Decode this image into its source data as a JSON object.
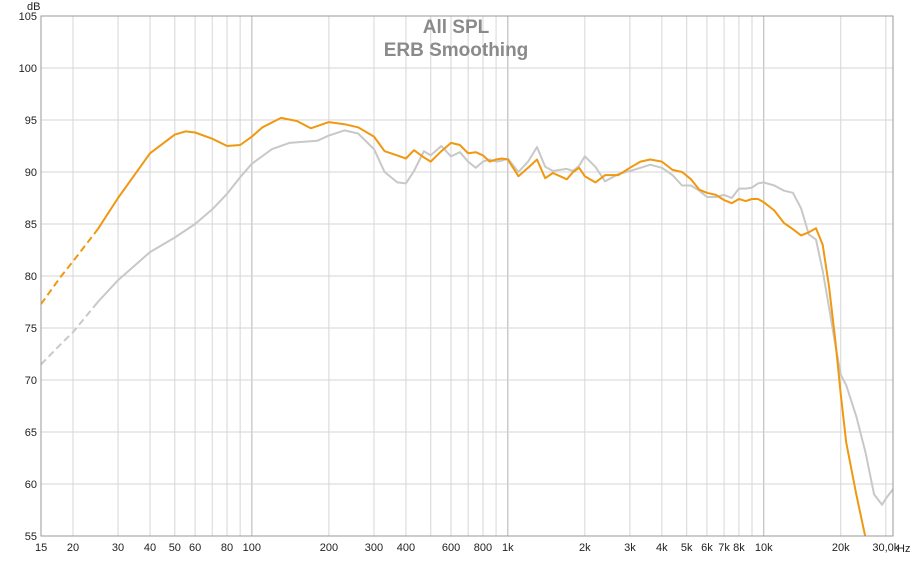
{
  "chart_data": {
    "type": "line",
    "title": "All SPL",
    "subtitle": "ERB Smoothing",
    "y_unit": "dB",
    "x_unit": "Hz",
    "x_scale": "log",
    "xlim": [
      15,
      32000
    ],
    "ylim": [
      55,
      105
    ],
    "grid": true,
    "legend": "none",
    "x_ticks": [
      {
        "value": 15,
        "label": "15"
      },
      {
        "value": 20,
        "label": "20"
      },
      {
        "value": 30,
        "label": "30"
      },
      {
        "value": 40,
        "label": "40"
      },
      {
        "value": 50,
        "label": "50"
      },
      {
        "value": 60,
        "label": "60"
      },
      {
        "value": 80,
        "label": "80"
      },
      {
        "value": 100,
        "label": "100"
      },
      {
        "value": 200,
        "label": "200"
      },
      {
        "value": 300,
        "label": "300"
      },
      {
        "value": 400,
        "label": "400"
      },
      {
        "value": 600,
        "label": "600"
      },
      {
        "value": 800,
        "label": "800"
      },
      {
        "value": 1000,
        "label": "1k"
      },
      {
        "value": 2000,
        "label": "2k"
      },
      {
        "value": 3000,
        "label": "3k"
      },
      {
        "value": 4000,
        "label": "4k"
      },
      {
        "value": 5000,
        "label": "5k"
      },
      {
        "value": 6000,
        "label": "6k"
      },
      {
        "value": 7000,
        "label": "7k"
      },
      {
        "value": 8000,
        "label": "8k"
      },
      {
        "value": 10000,
        "label": "10k"
      },
      {
        "value": 20000,
        "label": "20k"
      },
      {
        "value": 30000,
        "label": "30,0k"
      }
    ],
    "y_ticks": [
      {
        "value": 55,
        "label": "55"
      },
      {
        "value": 60,
        "label": "60"
      },
      {
        "value": 65,
        "label": "65"
      },
      {
        "value": 70,
        "label": "70"
      },
      {
        "value": 75,
        "label": "75"
      },
      {
        "value": 80,
        "label": "80"
      },
      {
        "value": 85,
        "label": "85"
      },
      {
        "value": 90,
        "label": "90"
      },
      {
        "value": 95,
        "label": "95"
      },
      {
        "value": 100,
        "label": "100"
      },
      {
        "value": 105,
        "label": "105"
      }
    ],
    "series": [
      {
        "color": "#f0980f",
        "dashed_below_hz": 25,
        "x": [
          15,
          18,
          20,
          25,
          30,
          40,
          50,
          55,
          60,
          70,
          80,
          90,
          100,
          110,
          130,
          150,
          170,
          200,
          230,
          260,
          300,
          330,
          370,
          400,
          430,
          470,
          500,
          550,
          600,
          650,
          700,
          750,
          800,
          850,
          900,
          950,
          1000,
          1100,
          1200,
          1300,
          1400,
          1500,
          1600,
          1700,
          1800,
          1900,
          2000,
          2200,
          2400,
          2700,
          3000,
          3300,
          3600,
          4000,
          4400,
          4800,
          5200,
          5600,
          6000,
          6500,
          7000,
          7500,
          8000,
          8500,
          9000,
          9500,
          10000,
          11000,
          12000,
          13000,
          14000,
          15000,
          16000,
          17000,
          18000,
          19000,
          20000,
          21000,
          23000,
          25000
        ],
        "y": [
          77.3,
          80,
          81.4,
          84.5,
          87.5,
          91.8,
          93.6,
          93.9,
          93.8,
          93.2,
          92.5,
          92.6,
          93.4,
          94.3,
          95.2,
          94.9,
          94.2,
          94.8,
          94.6,
          94.3,
          93.4,
          92.0,
          91.6,
          91.3,
          92.1,
          91.4,
          91.0,
          92.0,
          92.8,
          92.6,
          91.8,
          91.9,
          91.6,
          91.0,
          91.2,
          91.3,
          91.2,
          89.6,
          90.4,
          91.2,
          89.4,
          89.9,
          89.6,
          89.3,
          90.0,
          90.4,
          89.6,
          89.0,
          89.7,
          89.7,
          90.4,
          91.0,
          91.2,
          91.0,
          90.2,
          90.0,
          89.3,
          88.3,
          88.0,
          87.8,
          87.3,
          87.0,
          87.4,
          87.2,
          87.4,
          87.4,
          87.1,
          86.3,
          85.1,
          84.5,
          83.9,
          84.2,
          84.6,
          83.0,
          79.0,
          74.0,
          68.6,
          64.0,
          59.0,
          54.8
        ]
      },
      {
        "color": "#c8c8c8",
        "dashed_below_hz": 25,
        "x": [
          15,
          18,
          20,
          25,
          30,
          40,
          50,
          60,
          70,
          80,
          90,
          100,
          120,
          140,
          160,
          180,
          200,
          230,
          260,
          300,
          330,
          370,
          400,
          430,
          470,
          500,
          550,
          600,
          650,
          700,
          750,
          800,
          850,
          900,
          950,
          1000,
          1100,
          1200,
          1300,
          1400,
          1500,
          1600,
          1700,
          1800,
          1900,
          2000,
          2200,
          2400,
          2700,
          3000,
          3300,
          3600,
          4000,
          4400,
          4800,
          5200,
          5600,
          6000,
          6500,
          7000,
          7500,
          8000,
          8500,
          9000,
          9500,
          10000,
          11000,
          12000,
          13000,
          14000,
          15000,
          16000,
          17000,
          18000,
          19000,
          20000,
          21000,
          23000,
          25000,
          27000,
          29000,
          30000,
          32000
        ],
        "y": [
          71.5,
          73.5,
          74.6,
          77.5,
          79.6,
          82.3,
          83.7,
          85.0,
          86.4,
          87.9,
          89.5,
          90.8,
          92.2,
          92.8,
          92.9,
          93.0,
          93.5,
          94.0,
          93.7,
          92.2,
          90.0,
          89.0,
          88.9,
          90.1,
          92.0,
          91.6,
          92.5,
          91.5,
          91.9,
          91.0,
          90.4,
          91.0,
          91.2,
          91.0,
          91.1,
          91.3,
          90.0,
          91.0,
          92.4,
          90.5,
          90.1,
          90.2,
          90.3,
          90.1,
          90.6,
          91.5,
          90.5,
          89.1,
          89.8,
          90.1,
          90.4,
          90.7,
          90.4,
          89.7,
          88.7,
          88.7,
          88.2,
          87.6,
          87.6,
          87.8,
          87.5,
          88.4,
          88.4,
          88.5,
          88.9,
          89.0,
          88.7,
          88.2,
          88.0,
          86.5,
          84.0,
          83.5,
          80.5,
          77.0,
          73.5,
          70.5,
          69.5,
          66.5,
          63.0,
          59.0,
          58.0,
          58.6,
          59.5
        ]
      }
    ]
  }
}
